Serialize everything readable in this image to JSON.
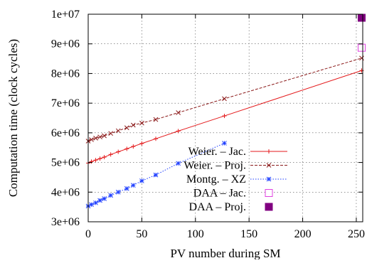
{
  "chart_data": {
    "type": "line",
    "title": "",
    "xlabel": "PV number during SM",
    "ylabel": "Computation time (clock cycles)",
    "xlim": [
      0,
      256
    ],
    "ylim": [
      3000000,
      10000000
    ],
    "xticks": [
      0,
      50,
      100,
      150,
      200,
      250
    ],
    "xtick_labels": [
      "0",
      "50",
      "100",
      "150",
      "200",
      "250"
    ],
    "yticks": [
      3000000,
      4000000,
      5000000,
      6000000,
      7000000,
      8000000,
      9000000,
      10000000
    ],
    "ytick_labels": [
      "3e+06",
      "4e+06",
      "5e+06",
      "6e+06",
      "7e+06",
      "8e+06",
      "9e+06",
      "1e+07"
    ],
    "grid": true,
    "legend_position": "bottom-right",
    "series": [
      {
        "name": "Weier. – Jac.",
        "color": "#e41a1c",
        "line_style": "solid",
        "marker": "plus",
        "x": [
          0,
          3,
          7,
          11,
          15,
          21,
          28,
          36,
          42,
          50,
          63,
          84,
          127,
          255
        ],
        "y": [
          4980000,
          5030000,
          5080000,
          5130000,
          5180000,
          5270000,
          5360000,
          5460000,
          5540000,
          5640000,
          5800000,
          6060000,
          6570000,
          8100000
        ]
      },
      {
        "name": "Weier. – Proj.",
        "color": "#8b1a1a",
        "line_style": "dashed",
        "marker": "x",
        "x": [
          0,
          3,
          7,
          11,
          15,
          21,
          28,
          36,
          42,
          50,
          63,
          84,
          127,
          255
        ],
        "y": [
          5720000,
          5770000,
          5820000,
          5860000,
          5900000,
          5980000,
          6070000,
          6170000,
          6260000,
          6330000,
          6450000,
          6680000,
          7150000,
          8520000
        ]
      },
      {
        "name": "Montg. – XZ",
        "color": "#1f3fff",
        "line_style": "dotted",
        "marker": "star",
        "x": [
          0,
          3,
          7,
          11,
          15,
          21,
          28,
          36,
          42,
          50,
          63,
          84,
          127
        ],
        "y": [
          3530000,
          3580000,
          3640000,
          3720000,
          3780000,
          3890000,
          4000000,
          4120000,
          4230000,
          4380000,
          4580000,
          4970000,
          5650000
        ]
      },
      {
        "name": "DAA – Jac.",
        "color": "#e040e0",
        "line_style": "none",
        "marker": "open-square",
        "x": [
          255
        ],
        "y": [
          8870000
        ]
      },
      {
        "name": "DAA – Proj.",
        "color": "#800080",
        "line_style": "none",
        "marker": "filled-square",
        "x": [
          255
        ],
        "y": [
          9880000
        ]
      }
    ]
  }
}
